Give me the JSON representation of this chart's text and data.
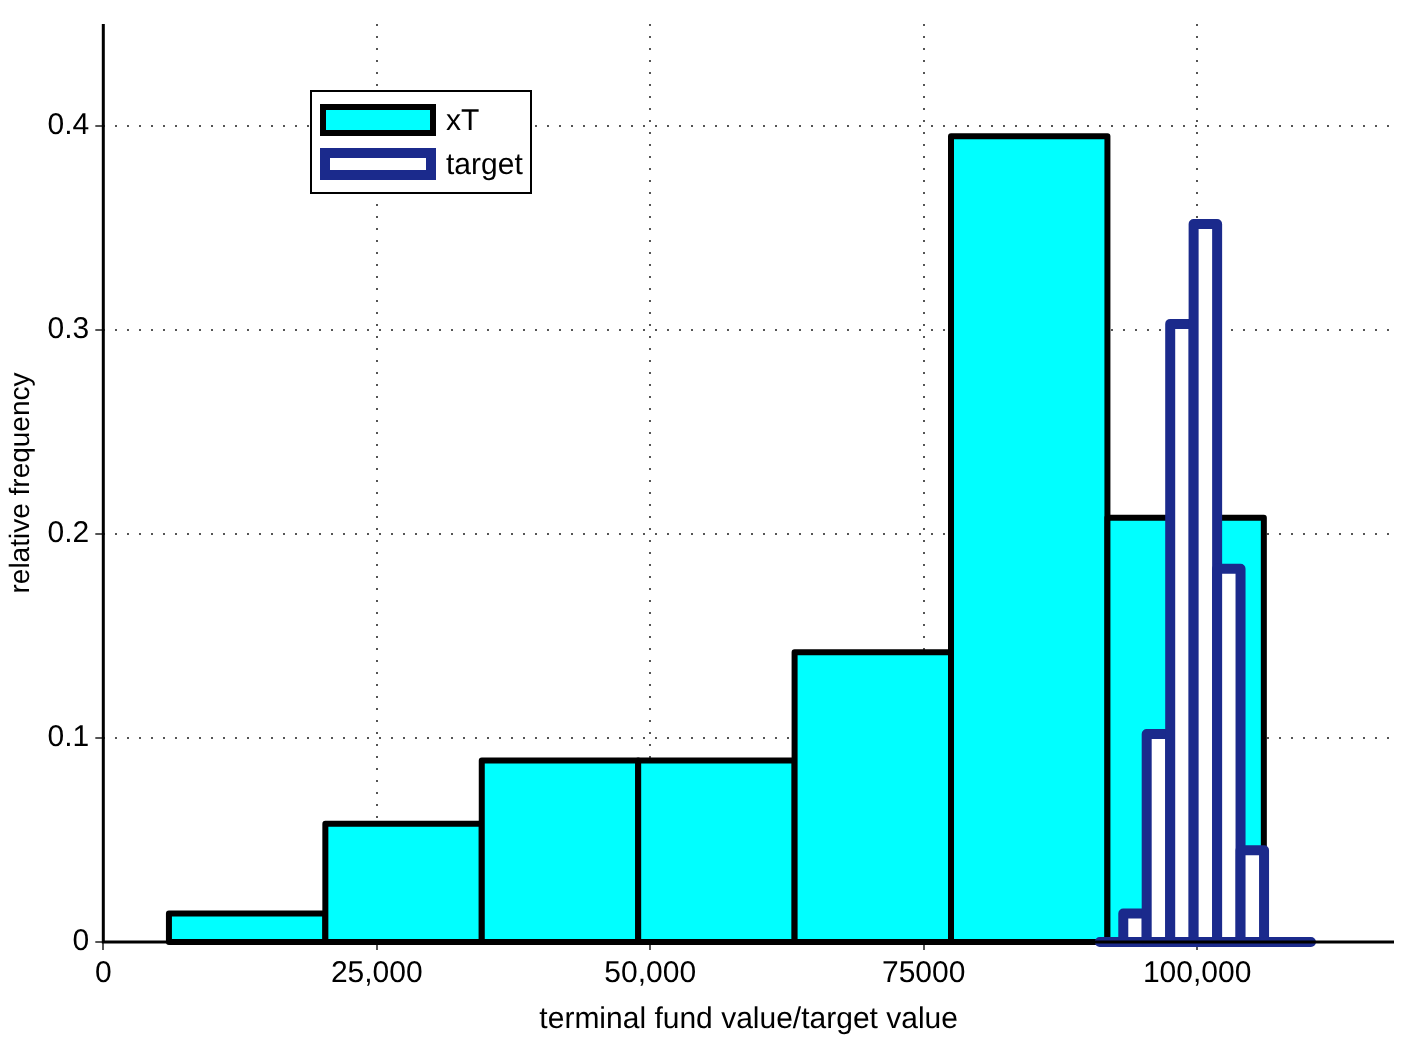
{
  "chart_data": {
    "type": "histogram",
    "xlabel": "terminal fund value/target value",
    "ylabel": "relative frequency",
    "xlim": [
      0,
      118000
    ],
    "ylim": [
      0,
      0.45
    ],
    "xticks": [
      0,
      {
        "value": 25000,
        "label": "25,000"
      },
      {
        "value": 50000,
        "label": "50,000"
      },
      75000,
      {
        "value": 100000,
        "label": "100,000"
      }
    ],
    "yticks": [
      0,
      0.1,
      0.2,
      0.3,
      0.4
    ],
    "grid": true,
    "legend": "top left",
    "bins": [
      6000,
      20300,
      34600,
      48900,
      63200,
      77500,
      91800,
      106100
    ],
    "series": [
      {
        "name": "xT",
        "color": "#00ffff",
        "values": [
          0.014,
          0.058,
          0.089,
          0.089,
          0.142,
          0.395,
          0.208
        ]
      },
      {
        "name": "target",
        "color": "#1b2a8c",
        "bins": [
          91100,
          93250,
          95390,
          97540,
          99680,
          101830,
          103970,
          106120,
          108260,
          110410
        ],
        "values": [
          0,
          0.014,
          0.102,
          0.303,
          0.352,
          0.183,
          0.045,
          0,
          0
        ]
      }
    ]
  }
}
